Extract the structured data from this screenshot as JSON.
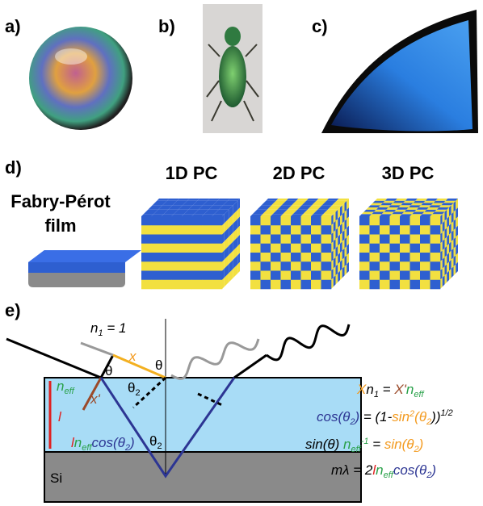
{
  "panels": {
    "a": "a)",
    "b": "b)",
    "c": "c)",
    "d": "d)",
    "e": "e)"
  },
  "structures": {
    "film_line1": "Fabry-Pérot",
    "film_line2": "film",
    "pc1": "1D PC",
    "pc2": "2D PC",
    "pc3": "3D PC"
  },
  "diagram": {
    "n1": [
      "n",
      "1",
      " = 1"
    ],
    "x": "x",
    "x_prime": "x'",
    "theta_left": "θ",
    "theta_right": "θ",
    "theta2_top": [
      "θ",
      "2"
    ],
    "theta2_bottom": [
      "θ",
      "2"
    ],
    "n_eff": [
      "n",
      "eff"
    ],
    "l": "l",
    "path": [
      "l",
      "n",
      "eff",
      "cos(θ",
      "2",
      ")"
    ],
    "si": "Si"
  },
  "equations": [
    [
      "X",
      "n",
      "1",
      " = ",
      "X'",
      "n",
      "eff"
    ],
    [
      "cos(θ",
      "2",
      ")",
      " = (1-",
      "sin",
      "2",
      "(θ",
      "2",
      "))",
      "1/2"
    ],
    [
      "sin(θ) ",
      "n",
      "eff",
      "-1",
      " = ",
      "sin(θ",
      "2",
      ")"
    ],
    [
      "mλ = 2",
      "l",
      "n",
      "eff",
      "cos(θ",
      "2",
      ")"
    ]
  ]
}
